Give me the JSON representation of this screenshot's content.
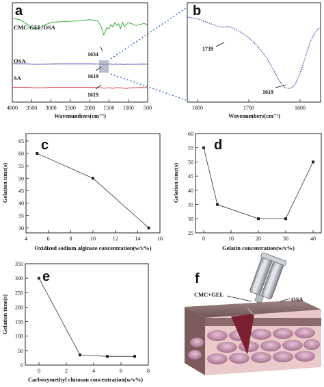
{
  "panels": {
    "a": {
      "label": "a"
    },
    "b": {
      "label": "b"
    },
    "c": {
      "label": "c"
    },
    "d": {
      "label": "d"
    },
    "e": {
      "label": "e"
    },
    "f": {
      "label": "f",
      "text_left": "CMC+GEL",
      "text_right": "OSA"
    }
  },
  "chart_data": [
    {
      "id": "a",
      "type": "line",
      "xlabel": "Wavenumbers(cm⁻¹)",
      "xlim": [
        4000,
        500
      ],
      "xticks": [
        4000,
        3500,
        3000,
        2500,
        2000,
        1500,
        1000,
        500
      ],
      "series": [
        {
          "name": "CMC-GEL/OSA",
          "color": "#4cae4c",
          "x": [
            4000,
            3800,
            3600,
            3500,
            3400,
            3300,
            3200,
            3000,
            2800,
            2500,
            2200,
            2000,
            1800,
            1700,
            1634,
            1560,
            1500,
            1450,
            1400,
            1350,
            1300,
            1250,
            1200,
            1150,
            1100,
            1050,
            1000,
            900,
            800,
            700,
            600,
            500
          ],
          "y": [
            0.95,
            0.92,
            0.8,
            0.73,
            0.7,
            0.72,
            0.78,
            0.85,
            0.87,
            0.88,
            0.9,
            0.92,
            0.9,
            0.75,
            0.55,
            0.72,
            0.7,
            0.8,
            0.75,
            0.85,
            0.78,
            0.82,
            0.7,
            0.86,
            0.75,
            0.8,
            0.85,
            0.82,
            0.78,
            0.8,
            0.83,
            0.8
          ]
        },
        {
          "name": "OSA",
          "color": "#5b4db3",
          "x": [
            4000,
            3600,
            3400,
            3200,
            3000,
            2800,
            2500,
            2000,
            1800,
            1739,
            1700,
            1619,
            1550,
            1450,
            1400,
            1350,
            1300,
            1200,
            1100,
            1050,
            1000,
            900,
            800,
            700,
            500
          ],
          "y": [
            0.45,
            0.44,
            0.4,
            0.42,
            0.43,
            0.44,
            0.44,
            0.44,
            0.43,
            0.42,
            0.42,
            0.38,
            0.42,
            0.43,
            0.39,
            0.43,
            0.41,
            0.43,
            0.39,
            0.42,
            0.4,
            0.42,
            0.41,
            0.43,
            0.42
          ]
        },
        {
          "name": "SA",
          "color": "#e05a5a",
          "x": [
            4000,
            3600,
            3400,
            3200,
            3000,
            2800,
            2500,
            2000,
            1800,
            1700,
            1619,
            1550,
            1450,
            1410,
            1350,
            1300,
            1200,
            1100,
            1030,
            1000,
            900,
            800,
            700,
            500
          ],
          "y": [
            0.23,
            0.22,
            0.19,
            0.2,
            0.22,
            0.22,
            0.22,
            0.22,
            0.21,
            0.2,
            0.15,
            0.19,
            0.19,
            0.14,
            0.19,
            0.2,
            0.19,
            0.16,
            0.13,
            0.18,
            0.19,
            0.2,
            0.21,
            0.21
          ]
        }
      ],
      "annotations": [
        {
          "text": "1634",
          "x": 1634
        },
        {
          "text": "1619",
          "x": 1619
        },
        {
          "text": "1619",
          "x": 1619
        }
      ]
    },
    {
      "id": "b",
      "type": "line",
      "xlabel": "Wavenumbers(cm⁻¹)",
      "xlim": [
        1820,
        1560
      ],
      "xticks": [
        1800,
        1700,
        1600
      ],
      "series": [
        {
          "name": "OSA",
          "color": "#3a4aa8",
          "x": [
            1820,
            1800,
            1780,
            1760,
            1750,
            1740,
            1730,
            1720,
            1710,
            1700,
            1690,
            1680,
            1670,
            1660,
            1650,
            1640,
            1630,
            1620,
            1610,
            1600,
            1590,
            1580,
            1570,
            1560
          ],
          "y": [
            0.88,
            0.86,
            0.82,
            0.78,
            0.77,
            0.78,
            0.76,
            0.73,
            0.7,
            0.66,
            0.61,
            0.55,
            0.48,
            0.4,
            0.3,
            0.2,
            0.13,
            0.12,
            0.16,
            0.28,
            0.45,
            0.62,
            0.72,
            0.78
          ]
        }
      ],
      "annotations": [
        {
          "text": "1739",
          "x": 1739
        },
        {
          "text": "1619",
          "x": 1619
        }
      ]
    },
    {
      "id": "c",
      "type": "line",
      "xlabel": "Oxidized sodium alginate concentration(w/v%)",
      "ylabel": "Gelation time(s)",
      "xlim": [
        4,
        16
      ],
      "ylim": [
        28,
        68
      ],
      "xticks": [
        4,
        6,
        8,
        10,
        12,
        14,
        16
      ],
      "yticks": [
        30,
        35,
        40,
        45,
        50,
        55,
        60,
        65
      ],
      "x": [
        5,
        10,
        15
      ],
      "y": [
        60,
        50,
        30
      ]
    },
    {
      "id": "d",
      "type": "line",
      "xlabel": "Gelatin concentration(w/v%)",
      "ylabel": "Gelation time(s)",
      "xlim": [
        -3,
        43
      ],
      "ylim": [
        25,
        60
      ],
      "xticks": [
        0,
        10,
        20,
        30,
        40
      ],
      "yticks": [
        25,
        30,
        35,
        40,
        45,
        50,
        55,
        60
      ],
      "x": [
        0,
        5,
        20,
        30,
        40
      ],
      "y": [
        55,
        35,
        30,
        30,
        50
      ]
    },
    {
      "id": "e",
      "type": "line",
      "xlabel": "Carboxymethyl chitosan concentration(w/v%)",
      "ylabel": "Gelation time(s)",
      "xlim": [
        -1,
        8
      ],
      "ylim": [
        0,
        350
      ],
      "xticks": [
        0,
        2,
        4,
        6,
        8
      ],
      "yticks": [
        0,
        50,
        100,
        150,
        200,
        250,
        300,
        350
      ],
      "x": [
        0,
        3,
        5,
        7
      ],
      "y": [
        300,
        35,
        30,
        30
      ]
    }
  ]
}
